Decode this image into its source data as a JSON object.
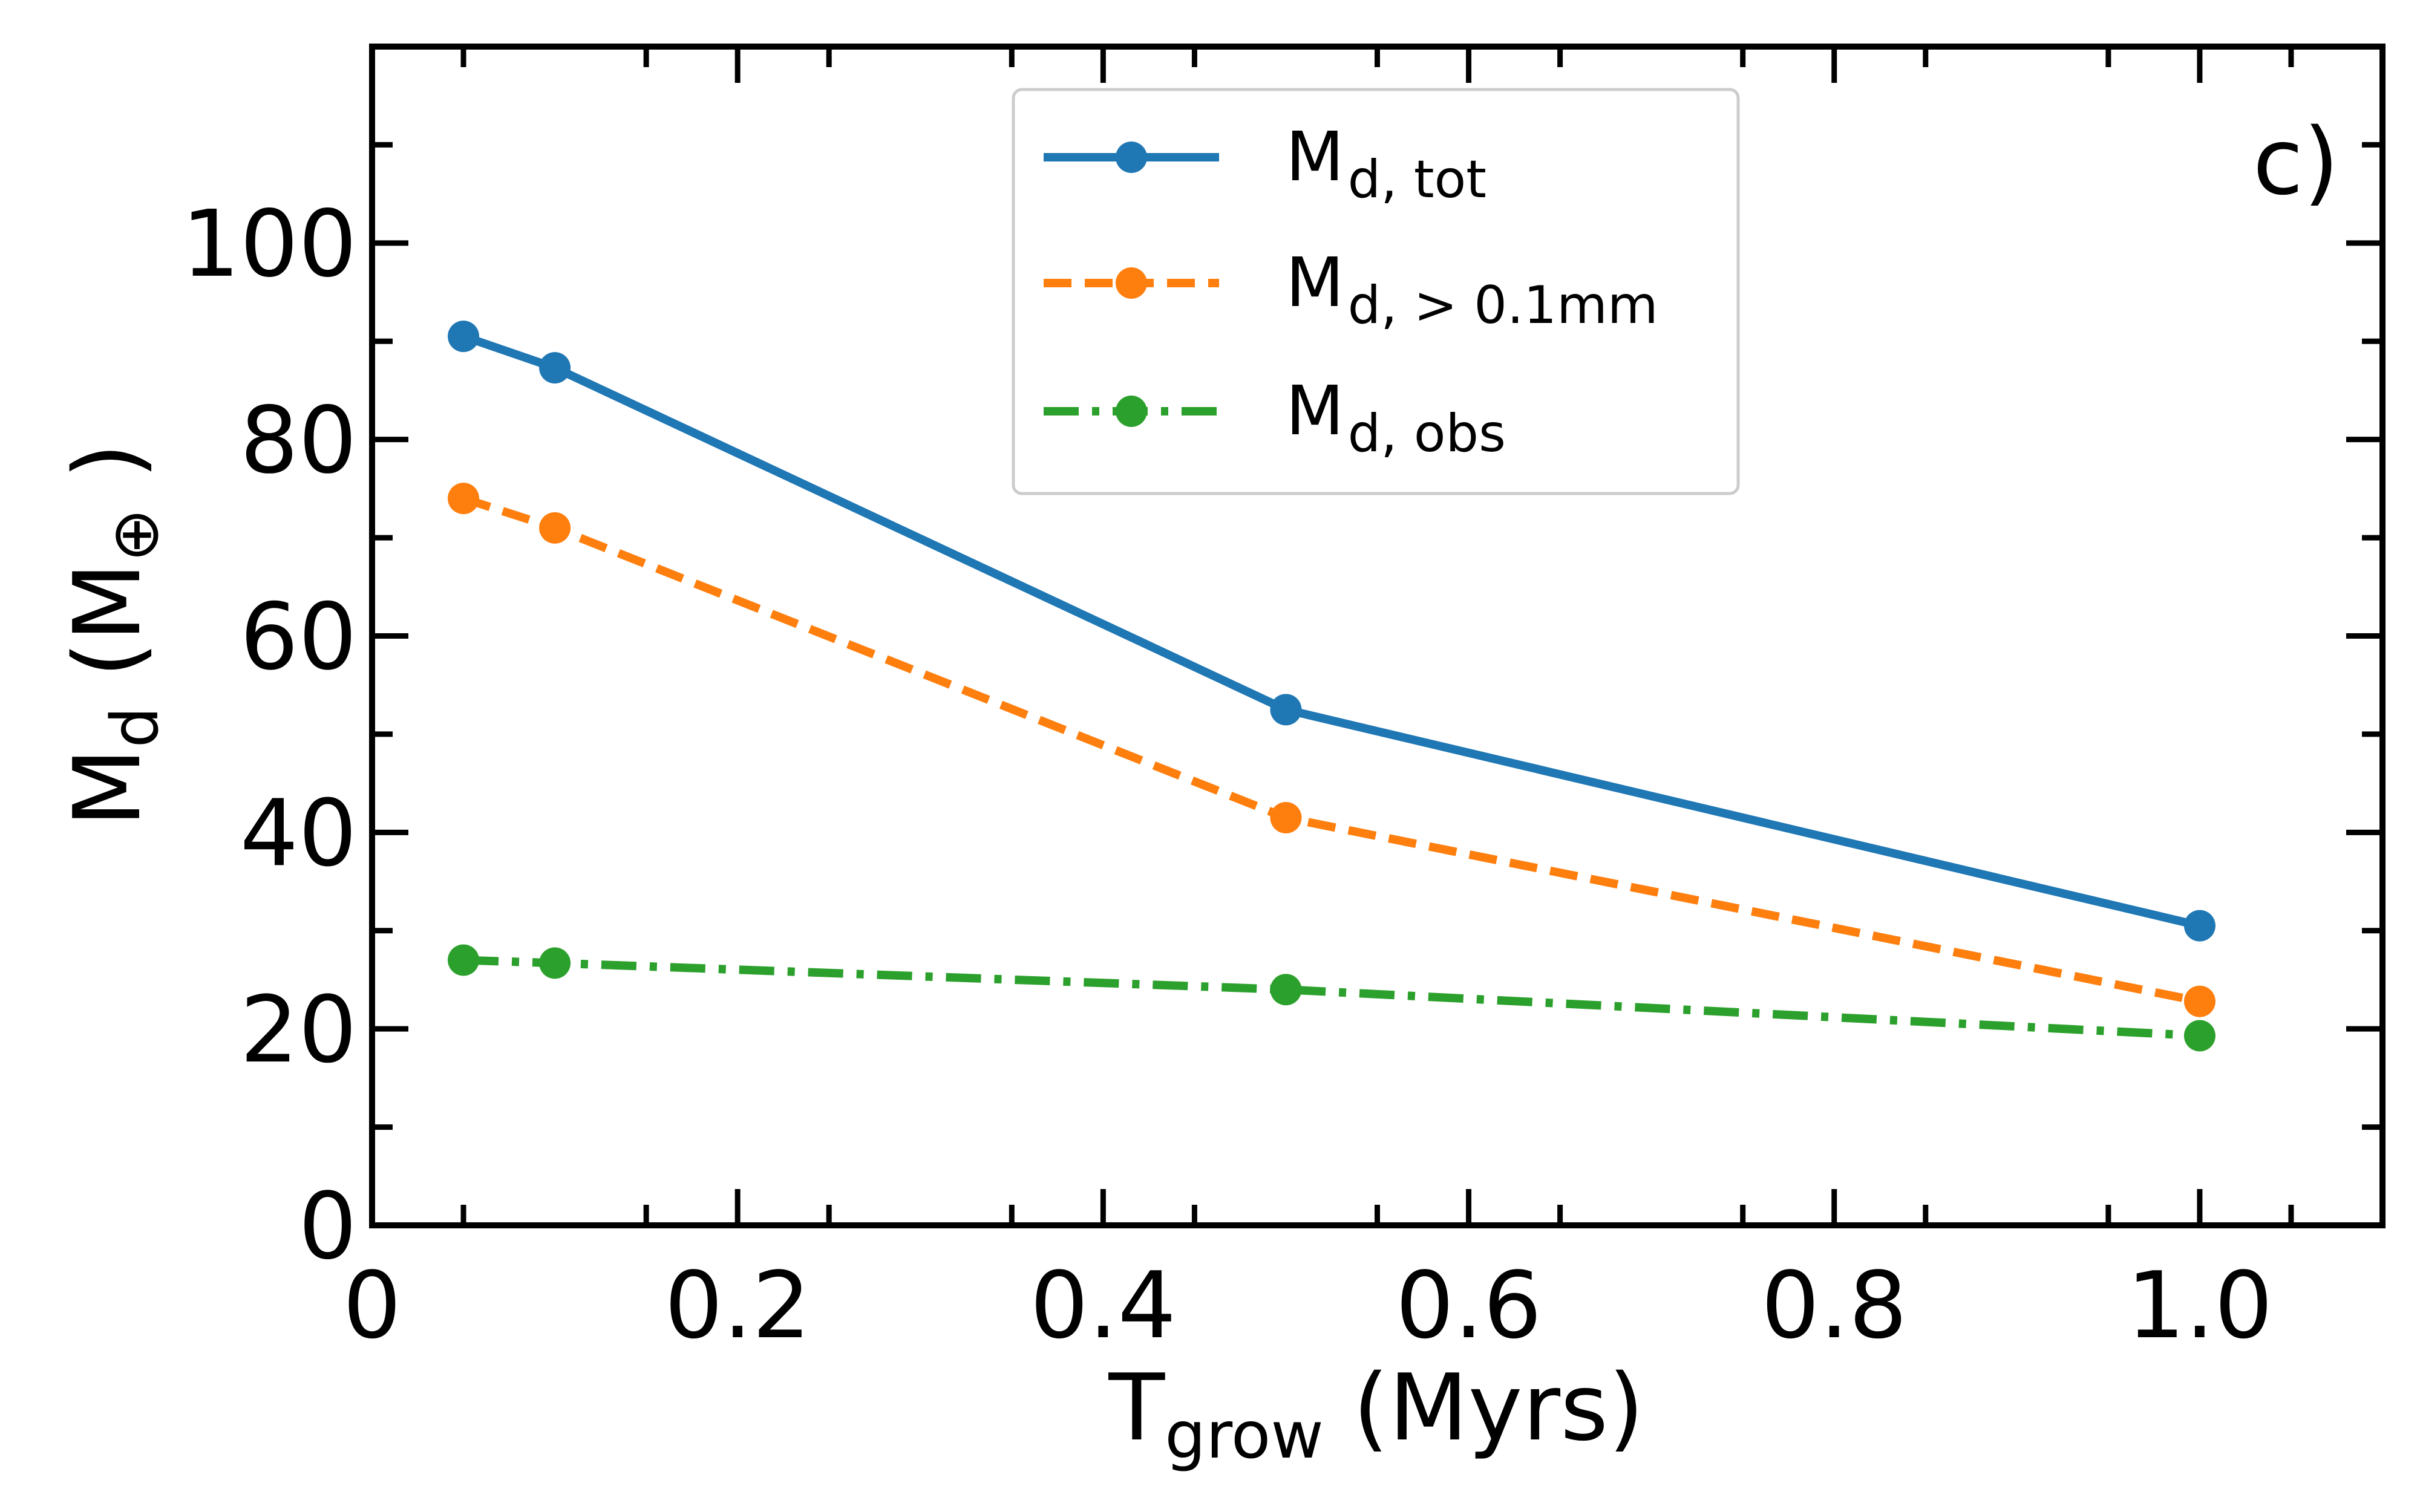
{
  "chart_data": {
    "type": "line",
    "panel_label": "c)",
    "xlabel": {
      "main": "T",
      "sub": "grow",
      "tail": " (Myrs)"
    },
    "ylabel": {
      "main": "M",
      "sub": "d",
      "tail": " (M",
      "unit_sub": "⊕",
      "close": " )"
    },
    "xlim": [
      0,
      1.1
    ],
    "ylim": [
      0,
      120
    ],
    "xticks": [
      0,
      0.2,
      0.4,
      0.6,
      0.8,
      1.0
    ],
    "xtick_labels": [
      "0",
      "0.2",
      "0.4",
      "0.6",
      "0.8",
      "1.0"
    ],
    "yticks": [
      0,
      20,
      40,
      60,
      80,
      100
    ],
    "ytick_labels": [
      "0",
      "20",
      "40",
      "60",
      "80",
      "100"
    ],
    "x": [
      0.05,
      0.1,
      0.5,
      1.0
    ],
    "series": [
      {
        "name_main": "M",
        "name_sub": "d, tot",
        "color": "#1f77b4",
        "dash": "solid",
        "values": [
          90.5,
          87.3,
          52.5,
          30.5
        ]
      },
      {
        "name_main": "M",
        "name_sub": "d, > 0.1mm",
        "color": "#ff7f0e",
        "dash": "dashed",
        "values": [
          74.0,
          71.0,
          41.5,
          22.8
        ]
      },
      {
        "name_main": "M",
        "name_sub": "d, obs",
        "color": "#2ca02c",
        "dash": "dashdot",
        "values": [
          27.0,
          26.7,
          24.0,
          19.3
        ]
      }
    ],
    "legend_position": "top-center",
    "grid": false
  }
}
